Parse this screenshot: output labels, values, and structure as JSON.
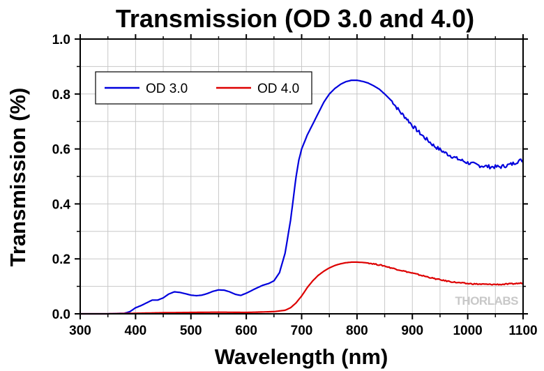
{
  "chart_data": {
    "type": "line",
    "title": "Transmission (OD 3.0 and 4.0)",
    "xlabel": "Wavelength (nm)",
    "ylabel": "Transmission (%)",
    "xlim": [
      300,
      1100
    ],
    "ylim": [
      0.0,
      1.0
    ],
    "xticks": [
      300,
      400,
      500,
      600,
      700,
      800,
      900,
      1000,
      1100
    ],
    "yticks": [
      "0.0",
      "0.2",
      "0.4",
      "0.6",
      "0.8",
      "1.0"
    ],
    "grid": true,
    "legend_position": "top-left",
    "watermark": "THORLABS",
    "series": [
      {
        "name": "OD 3.0",
        "color": "#0000dd",
        "x": [
          300,
          350,
          380,
          390,
          400,
          410,
          420,
          430,
          440,
          450,
          460,
          470,
          480,
          490,
          500,
          510,
          520,
          530,
          540,
          550,
          560,
          570,
          580,
          590,
          600,
          610,
          620,
          630,
          640,
          650,
          660,
          670,
          680,
          685,
          690,
          695,
          700,
          710,
          720,
          730,
          740,
          750,
          760,
          770,
          780,
          790,
          800,
          810,
          820,
          830,
          840,
          850,
          855,
          860,
          865,
          870,
          880,
          890,
          900,
          920,
          940,
          960,
          980,
          1000,
          1020,
          1040,
          1060,
          1080,
          1090,
          1100
        ],
        "y": [
          0.0,
          0.0,
          0.002,
          0.008,
          0.022,
          0.03,
          0.04,
          0.05,
          0.05,
          0.058,
          0.072,
          0.08,
          0.078,
          0.073,
          0.068,
          0.066,
          0.068,
          0.074,
          0.082,
          0.087,
          0.086,
          0.08,
          0.071,
          0.067,
          0.075,
          0.085,
          0.095,
          0.104,
          0.11,
          0.12,
          0.15,
          0.22,
          0.34,
          0.42,
          0.5,
          0.56,
          0.6,
          0.65,
          0.69,
          0.73,
          0.77,
          0.8,
          0.82,
          0.835,
          0.845,
          0.85,
          0.85,
          0.846,
          0.84,
          0.83,
          0.818,
          0.8,
          0.79,
          0.78,
          0.77,
          0.755,
          0.73,
          0.71,
          0.685,
          0.645,
          0.61,
          0.585,
          0.565,
          0.55,
          0.54,
          0.535,
          0.535,
          0.545,
          0.555,
          0.56
        ]
      },
      {
        "name": "OD 4.0",
        "color": "#dd0000",
        "x": [
          300,
          350,
          400,
          450,
          500,
          550,
          600,
          650,
          670,
          680,
          690,
          700,
          710,
          720,
          730,
          740,
          750,
          760,
          770,
          780,
          790,
          800,
          810,
          820,
          830,
          840,
          850,
          860,
          880,
          900,
          920,
          940,
          960,
          980,
          1000,
          1020,
          1040,
          1060,
          1080,
          1100
        ],
        "y": [
          0.0,
          0.0,
          0.002,
          0.004,
          0.005,
          0.006,
          0.005,
          0.008,
          0.013,
          0.022,
          0.04,
          0.065,
          0.095,
          0.12,
          0.14,
          0.155,
          0.167,
          0.176,
          0.182,
          0.186,
          0.188,
          0.188,
          0.187,
          0.185,
          0.182,
          0.178,
          0.174,
          0.168,
          0.158,
          0.148,
          0.138,
          0.128,
          0.12,
          0.114,
          0.11,
          0.108,
          0.107,
          0.107,
          0.109,
          0.112
        ]
      }
    ]
  }
}
